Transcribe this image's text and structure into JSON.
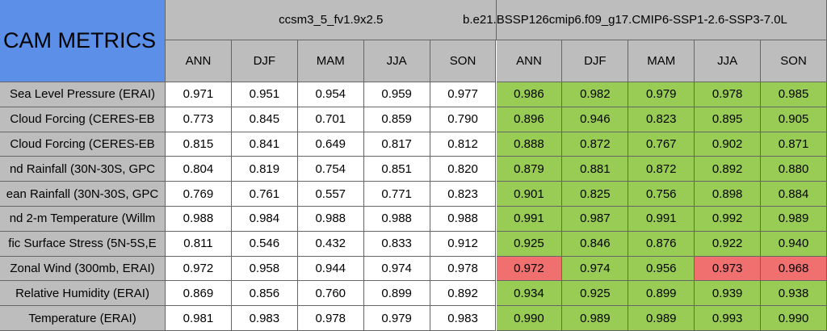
{
  "table": {
    "title": "CAM METRICS",
    "groups": [
      {
        "name": "ccsm3_5_fv1.9x2.5",
        "seasons": [
          "ANN",
          "DJF",
          "MAM",
          "JJA",
          "SON"
        ]
      },
      {
        "name": "b.e21.BSSP126cmip6.f09_g17.CMIP6-SSP1-2.6-SSP3-7.0L",
        "seasons": [
          "ANN",
          "DJF",
          "MAM",
          "JJA",
          "SON"
        ]
      }
    ],
    "colors": {
      "title": "#5b8fe8",
      "header": "#bdbdbd",
      "label": "#bdbdbd",
      "plain": "#ffffff",
      "better": "#99cc55",
      "worse": "#f07070"
    },
    "rows": [
      {
        "label": "Sea Level Pressure (ERAI)",
        "values": [
          "0.971",
          "0.951",
          "0.954",
          "0.959",
          "0.977",
          "0.986",
          "0.982",
          "0.979",
          "0.978",
          "0.985"
        ],
        "cells": [
          "plain",
          "plain",
          "plain",
          "plain",
          "plain",
          "better",
          "better",
          "better",
          "better",
          "better"
        ]
      },
      {
        "label": "Cloud Forcing (CERES-EB",
        "values": [
          "0.773",
          "0.845",
          "0.701",
          "0.859",
          "0.790",
          "0.896",
          "0.946",
          "0.823",
          "0.895",
          "0.905"
        ],
        "cells": [
          "plain",
          "plain",
          "plain",
          "plain",
          "plain",
          "better",
          "better",
          "better",
          "better",
          "better"
        ]
      },
      {
        "label": "Cloud Forcing (CERES-EB",
        "values": [
          "0.815",
          "0.841",
          "0.649",
          "0.817",
          "0.812",
          "0.888",
          "0.872",
          "0.767",
          "0.902",
          "0.871"
        ],
        "cells": [
          "plain",
          "plain",
          "plain",
          "plain",
          "plain",
          "better",
          "better",
          "better",
          "better",
          "better"
        ]
      },
      {
        "label": "nd Rainfall (30N-30S, GPC",
        "values": [
          "0.804",
          "0.819",
          "0.754",
          "0.851",
          "0.820",
          "0.879",
          "0.881",
          "0.872",
          "0.892",
          "0.880"
        ],
        "cells": [
          "plain",
          "plain",
          "plain",
          "plain",
          "plain",
          "better",
          "better",
          "better",
          "better",
          "better"
        ]
      },
      {
        "label": "ean Rainfall (30N-30S, GPC",
        "values": [
          "0.769",
          "0.761",
          "0.557",
          "0.771",
          "0.823",
          "0.901",
          "0.825",
          "0.756",
          "0.898",
          "0.884"
        ],
        "cells": [
          "plain",
          "plain",
          "plain",
          "plain",
          "plain",
          "better",
          "better",
          "better",
          "better",
          "better"
        ]
      },
      {
        "label": "nd 2-m Temperature (Willm",
        "values": [
          "0.988",
          "0.984",
          "0.988",
          "0.988",
          "0.988",
          "0.991",
          "0.987",
          "0.991",
          "0.992",
          "0.989"
        ],
        "cells": [
          "plain",
          "plain",
          "plain",
          "plain",
          "plain",
          "better",
          "better",
          "better",
          "better",
          "better"
        ]
      },
      {
        "label": "fic Surface Stress (5N-5S,E",
        "values": [
          "0.811",
          "0.546",
          "0.432",
          "0.833",
          "0.912",
          "0.925",
          "0.846",
          "0.876",
          "0.922",
          "0.940"
        ],
        "cells": [
          "plain",
          "plain",
          "plain",
          "plain",
          "plain",
          "better",
          "better",
          "better",
          "better",
          "better"
        ]
      },
      {
        "label": "Zonal Wind (300mb, ERAI)",
        "values": [
          "0.972",
          "0.958",
          "0.944",
          "0.974",
          "0.978",
          "0.972",
          "0.974",
          "0.956",
          "0.973",
          "0.968"
        ],
        "cells": [
          "plain",
          "plain",
          "plain",
          "plain",
          "plain",
          "worse",
          "better",
          "better",
          "worse",
          "worse"
        ]
      },
      {
        "label": "Relative Humidity (ERAI)",
        "values": [
          "0.869",
          "0.856",
          "0.760",
          "0.899",
          "0.892",
          "0.934",
          "0.925",
          "0.899",
          "0.939",
          "0.938"
        ],
        "cells": [
          "plain",
          "plain",
          "plain",
          "plain",
          "plain",
          "better",
          "better",
          "better",
          "better",
          "better"
        ]
      },
      {
        "label": "Temperature (ERAI)",
        "values": [
          "0.981",
          "0.983",
          "0.978",
          "0.979",
          "0.983",
          "0.990",
          "0.989",
          "0.989",
          "0.993",
          "0.990"
        ],
        "cells": [
          "plain",
          "plain",
          "plain",
          "plain",
          "plain",
          "better",
          "better",
          "better",
          "better",
          "better"
        ]
      }
    ]
  }
}
